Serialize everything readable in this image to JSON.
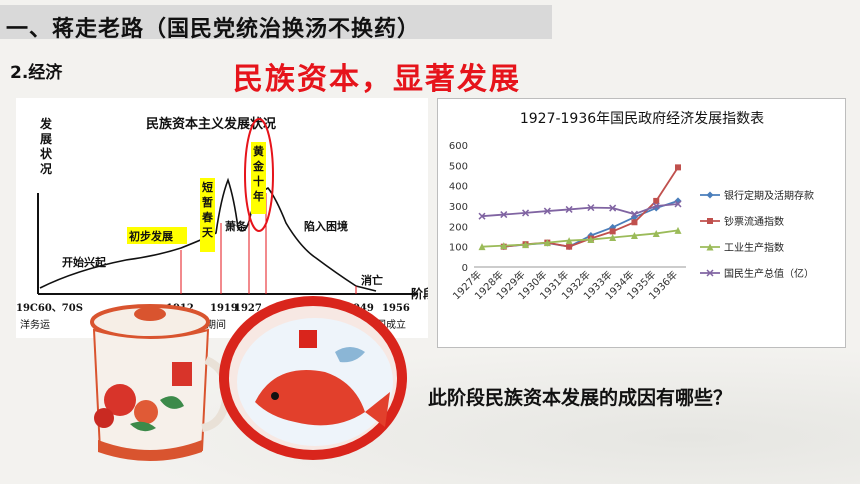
{
  "header": {
    "title": "一、蒋走老路（国民党统治换汤不换药）"
  },
  "section": {
    "label": "2.经济"
  },
  "red_title": "民族资本，显著发展",
  "question": "此阶段民族资本发展的成因有哪些？",
  "colors": {
    "accent_red": "#e6141b",
    "header_bg": "#d9d9d9",
    "series_bank": "#4a7ebb",
    "series_money": "#c0504d",
    "series_industry": "#9bbb59",
    "series_gnp": "#8064a2",
    "highlight_yellow": "#ffff00"
  },
  "left_chart": {
    "title": "民族资本主义发展状况",
    "ylabel": "发展状况",
    "xlabel_end": "阶段",
    "phases": {
      "start": "开始兴起",
      "initial": "初步发展",
      "brief_spring": "短暂春天",
      "golden_decade": "黄金十年",
      "depression": "萧条",
      "difficulty": "陷入困境",
      "demise": "消亡"
    },
    "ticks": [
      "19C60、70S",
      "1912",
      "1919",
      "1927",
      "1949",
      "1956"
    ],
    "bottom_notes": {
      "left": "洋务运",
      "mid": "期间",
      "right": "中国成立"
    }
  },
  "chart_data": {
    "type": "line",
    "title": "1927-1936年国民政府经济发展指数表",
    "categories": [
      "1927年",
      "1928年",
      "1929年",
      "1930年",
      "1931年",
      "1932年",
      "1933年",
      "1934年",
      "1935年",
      "1936年"
    ],
    "ylim": [
      0,
      600
    ],
    "yticks": [
      0,
      100,
      200,
      300,
      400,
      500,
      600
    ],
    "grid": false,
    "legend_position": "right",
    "series": [
      {
        "name": "银行定期及活期存款",
        "color": "#4a7ebb",
        "marker": "diamond",
        "values": [
          null,
          100,
          110,
          118,
          100,
          155,
          195,
          245,
          290,
          325
        ]
      },
      {
        "name": "钞票流通指数",
        "color": "#c0504d",
        "marker": "square",
        "values": [
          null,
          100,
          112,
          120,
          100,
          140,
          175,
          220,
          325,
          490
        ]
      },
      {
        "name": "工业生产指数",
        "color": "#9bbb59",
        "marker": "triangle",
        "values": [
          100,
          105,
          110,
          120,
          130,
          135,
          145,
          155,
          165,
          180
        ]
      },
      {
        "name": "国民生产总值（亿）",
        "color": "#8064a2",
        "marker": "x",
        "values": [
          250,
          258,
          266,
          275,
          283,
          292,
          290,
          260,
          300,
          310
        ]
      }
    ]
  }
}
